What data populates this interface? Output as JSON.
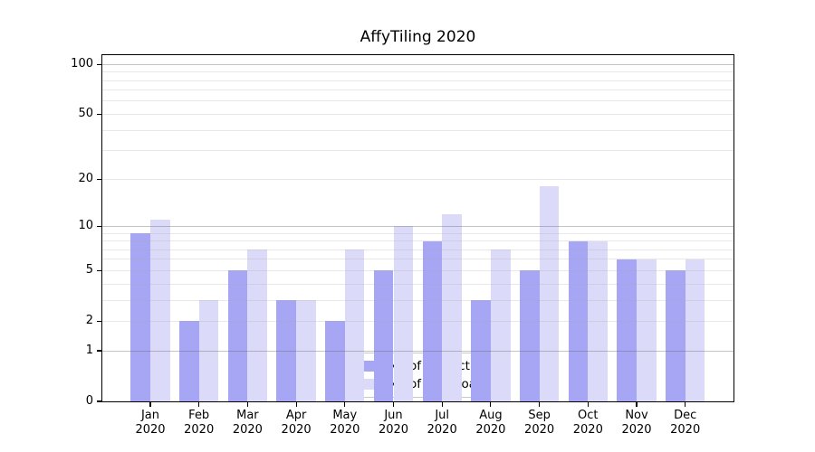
{
  "chart_data": {
    "type": "bar",
    "title": "AffyTiling 2020",
    "categories": [
      {
        "month": "Jan",
        "year": "2020"
      },
      {
        "month": "Feb",
        "year": "2020"
      },
      {
        "month": "Mar",
        "year": "2020"
      },
      {
        "month": "Apr",
        "year": "2020"
      },
      {
        "month": "May",
        "year": "2020"
      },
      {
        "month": "Jun",
        "year": "2020"
      },
      {
        "month": "Jul",
        "year": "2020"
      },
      {
        "month": "Aug",
        "year": "2020"
      },
      {
        "month": "Sep",
        "year": "2020"
      },
      {
        "month": "Oct",
        "year": "2020"
      },
      {
        "month": "Nov",
        "year": "2020"
      },
      {
        "month": "Dec",
        "year": "2020"
      }
    ],
    "series": [
      {
        "name": "Nb of distinct IPs",
        "color": "#a6a6f4",
        "values": [
          9,
          2,
          5,
          3,
          2,
          5,
          8,
          3,
          5,
          8,
          6,
          5
        ]
      },
      {
        "name": "Nb of downloads",
        "color": "#dbdbf9",
        "values": [
          11,
          3,
          7,
          3,
          7,
          10,
          12,
          7,
          18,
          8,
          6,
          6
        ]
      }
    ],
    "yscale": "log10(1+y)",
    "ylim": [
      0,
      113
    ],
    "ytick_labels": [
      0,
      1,
      2,
      5,
      10,
      20,
      50,
      100
    ],
    "grid_major": [
      1,
      10,
      100
    ],
    "grid_minor": [
      2,
      3,
      4,
      5,
      6,
      7,
      8,
      9,
      20,
      30,
      40,
      50,
      60,
      70,
      80,
      90
    ],
    "legend_position": "lower center",
    "colors": {
      "background": "#ffffff",
      "spine": "#000000",
      "text": "#000000",
      "grid_major": "#c9c9c9",
      "grid_minor": "#eaeaea"
    }
  }
}
